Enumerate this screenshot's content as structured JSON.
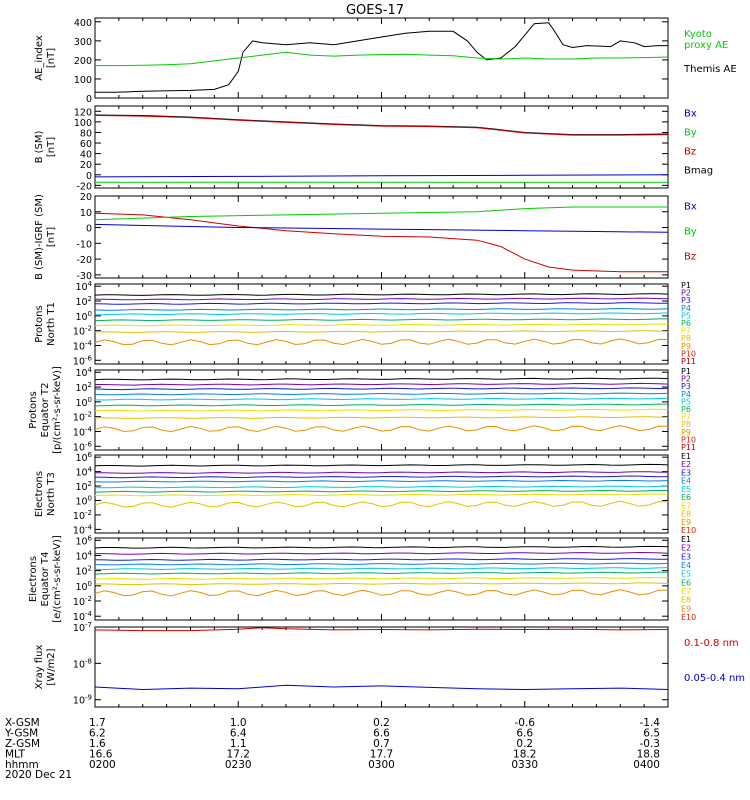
{
  "title": "GOES-17",
  "footer": {
    "rows": [
      {
        "label": "X-GSM",
        "values": [
          "1.7",
          "1.0",
          "0.2",
          "-0.6",
          "-1.4"
        ]
      },
      {
        "label": "Y-GSM",
        "values": [
          "6.2",
          "6.4",
          "6.6",
          "6.6",
          "6.5"
        ]
      },
      {
        "label": "Z-GSM",
        "values": [
          "1.6",
          "1.1",
          "0.7",
          "0.2",
          "-0.3"
        ]
      },
      {
        "label": "MLT",
        "values": [
          "16.6",
          "17.2",
          "17.7",
          "18.2",
          "18.8"
        ]
      },
      {
        "label": "hhmm",
        "values": [
          "0200",
          "0230",
          "0300",
          "0330",
          "0400"
        ]
      }
    ],
    "date": "2020 Dec 21"
  },
  "colors": {
    "black": "#000000",
    "green": "#00cc00",
    "red": "#cc0000",
    "blue": "#0000cc",
    "p1": "#000000",
    "p2": "#7a00a8",
    "p3": "#1a1acc",
    "p4": "#0a7fe0",
    "p5": "#00c8e0",
    "p6": "#00b060",
    "p7": "#e8e000",
    "p8": "#e8c000",
    "p9": "#e89000",
    "p10": "#e02000",
    "p11": "#aa0000"
  },
  "chart_data": [
    {
      "type": "line",
      "ylabel": [
        "AE_index",
        "[nT]"
      ],
      "yticks": [
        "400",
        "300",
        "200",
        "100",
        "0"
      ],
      "ylim": [
        0,
        420
      ],
      "xlim": [
        "0200",
        "0400"
      ],
      "legend": [
        {
          "text": [
            "Kyoto",
            "proxy AE"
          ],
          "color": "#00cc00"
        },
        {
          "text": [
            "Themis AE"
          ],
          "color": "#000000"
        }
      ],
      "series": [
        {
          "name": "Themis AE",
          "color": "#000000",
          "x": [
            0,
            4,
            10,
            20,
            25,
            28,
            30,
            31,
            33,
            35,
            40,
            45,
            50,
            55,
            60,
            65,
            70,
            75,
            78,
            80,
            82,
            85,
            88,
            92,
            95,
            96,
            98,
            100,
            103,
            108,
            110,
            113,
            115,
            118,
            120
          ],
          "values": [
            30,
            30,
            35,
            40,
            45,
            70,
            140,
            240,
            300,
            290,
            280,
            290,
            280,
            300,
            320,
            340,
            350,
            350,
            300,
            240,
            200,
            210,
            270,
            390,
            395,
            360,
            280,
            265,
            275,
            270,
            300,
            290,
            270,
            275,
            275
          ]
        },
        {
          "name": "Kyoto proxy AE",
          "color": "#00cc00",
          "x": [
            0,
            5,
            10,
            15,
            20,
            25,
            30,
            35,
            40,
            45,
            50,
            55,
            60,
            65,
            70,
            75,
            80,
            85,
            90,
            95,
            100,
            105,
            110,
            115,
            120
          ],
          "values": [
            170,
            170,
            172,
            175,
            180,
            195,
            210,
            225,
            240,
            225,
            220,
            225,
            228,
            230,
            225,
            222,
            210,
            205,
            210,
            205,
            205,
            210,
            210,
            212,
            215
          ]
        }
      ]
    },
    {
      "type": "line",
      "ylabel": [
        "B (SM)",
        "[nT]"
      ],
      "yticks": [
        "120",
        "100",
        "80",
        "60",
        "40",
        "20",
        "0",
        "-20"
      ],
      "ylim": [
        -25,
        130
      ],
      "legend": [
        {
          "text": [
            "Bx"
          ],
          "color": "#0000cc"
        },
        {
          "text": [
            "By"
          ],
          "color": "#00cc00"
        },
        {
          "text": [
            "Bz"
          ],
          "color": "#cc0000"
        },
        {
          "text": [
            "Bmag"
          ],
          "color": "#000000"
        }
      ],
      "series": [
        {
          "name": "Bmag",
          "color": "#000000",
          "x": [
            0,
            10,
            20,
            30,
            40,
            50,
            60,
            70,
            80,
            85,
            90,
            100,
            110,
            120
          ],
          "values": [
            113,
            112,
            109,
            104,
            100,
            96,
            93,
            92,
            90,
            85,
            80,
            76,
            76,
            77
          ]
        },
        {
          "name": "Bz",
          "color": "#cc0000",
          "x": [
            0,
            10,
            20,
            30,
            40,
            50,
            60,
            70,
            80,
            85,
            90,
            100,
            110,
            120
          ],
          "values": [
            112,
            111,
            108,
            103,
            99,
            95,
            92,
            91,
            89,
            84,
            79,
            75,
            75,
            76
          ]
        },
        {
          "name": "By",
          "color": "#00cc00",
          "x": [
            0,
            30,
            60,
            90,
            120
          ],
          "values": [
            -14,
            -14,
            -14,
            -14,
            -14
          ]
        },
        {
          "name": "Bx",
          "color": "#0000cc",
          "x": [
            0,
            30,
            60,
            90,
            120
          ],
          "values": [
            -4,
            -3,
            -2,
            -1,
            0
          ]
        }
      ]
    },
    {
      "type": "line",
      "ylabel": [
        "B (SM)-IGRF (SM)",
        "[nT]"
      ],
      "yticks": [
        "20",
        "10",
        "0",
        "-10",
        "-20",
        "-30"
      ],
      "ylim": [
        -32,
        20
      ],
      "legend": [
        {
          "text": [
            "Bx"
          ],
          "color": "#0000cc"
        },
        {
          "text": [
            "By"
          ],
          "color": "#00cc00"
        },
        {
          "text": [
            "Bz"
          ],
          "color": "#cc0000"
        }
      ],
      "series": [
        {
          "name": "Bz",
          "color": "#cc0000",
          "x": [
            0,
            10,
            20,
            30,
            40,
            50,
            60,
            70,
            80,
            85,
            90,
            95,
            100,
            110,
            120
          ],
          "values": [
            9,
            8,
            5,
            1,
            -2,
            -4,
            -5.5,
            -6,
            -8,
            -12,
            -20,
            -25,
            -27,
            -28,
            -28
          ]
        },
        {
          "name": "By",
          "color": "#00cc00",
          "x": [
            0,
            20,
            40,
            60,
            80,
            90,
            100,
            120
          ],
          "values": [
            5,
            7,
            8,
            9,
            10,
            12,
            13,
            13
          ]
        },
        {
          "name": "Bx",
          "color": "#0000cc",
          "x": [
            0,
            15,
            30,
            45,
            60,
            75,
            90,
            105,
            120
          ],
          "values": [
            2,
            1,
            0,
            -0.5,
            -1,
            -1.5,
            -2,
            -2.5,
            -3
          ]
        }
      ]
    },
    {
      "type": "line",
      "log": true,
      "ylabel": [
        "Protons",
        "North T1"
      ],
      "yticks": [
        "10^4",
        "10^2",
        "10^0",
        "10^-2",
        "10^-4",
        "10^-6"
      ],
      "ylim": [
        -6.5,
        4.3
      ],
      "legend_labels": [
        "P1",
        "P2",
        "P3",
        "P4",
        "P5",
        "P6",
        "P7",
        "P8",
        "P9",
        "P10",
        "P11"
      ],
      "levels_log10": [
        2.8,
        2.2,
        1.6,
        0.8,
        0.2,
        -0.6,
        -1.3,
        -2.2,
        -3.6
      ]
    },
    {
      "type": "line",
      "log": true,
      "ylabel": [
        "Protons",
        "Equator T2",
        "[p/(cm²-s-sr-keV)]"
      ],
      "yticks": [
        "10^4",
        "10^2",
        "10^0",
        "10^-2",
        "10^-4",
        "10^-6"
      ],
      "ylim": [
        -6.5,
        4.3
      ],
      "legend_labels": [
        "P1",
        "P2",
        "P3",
        "P4",
        "P5",
        "P6",
        "P7",
        "P8",
        "P9",
        "P10",
        "P11"
      ],
      "levels_log10": [
        3.0,
        2.3,
        1.7,
        1.0,
        0.3,
        -0.5,
        -1.2,
        -2.2,
        -3.7
      ]
    },
    {
      "type": "line",
      "log": true,
      "ylabel": [
        "Electrons",
        "North T3"
      ],
      "yticks": [
        "10^6",
        "10^4",
        "10^2",
        "10^0",
        "10^-2",
        "10^-4"
      ],
      "ylim": [
        -4.5,
        6.3
      ],
      "legend_labels": [
        "E1",
        "E2",
        "E3",
        "E4",
        "E5",
        "E6",
        "E7",
        "E8",
        "E9",
        "E10"
      ],
      "levels_log10": [
        4.8,
        3.8,
        3.2,
        2.6,
        1.8,
        1.2,
        0.7,
        -0.6
      ]
    },
    {
      "type": "line",
      "log": true,
      "ylabel": [
        "Electrons",
        "Equator T4",
        "[e/(cm²-s-sr-keV)]"
      ],
      "yticks": [
        "10^6",
        "10^4",
        "10^2",
        "10^0",
        "10^-2",
        "10^-4"
      ],
      "ylim": [
        -4.5,
        6.3
      ],
      "legend_labels": [
        "E1",
        "E2",
        "E3",
        "E4",
        "E5",
        "E6",
        "E7",
        "E8",
        "E9",
        "E10"
      ],
      "levels_log10": [
        5.0,
        4.2,
        3.4,
        2.8,
        2.2,
        1.6,
        0.9,
        0.2,
        -1.0
      ]
    },
    {
      "type": "line",
      "log": true,
      "ylabel": [
        "Xray flux",
        "[W/m2]"
      ],
      "yticks": [
        "10^-7",
        "10^-8",
        "10^-9"
      ],
      "ylim": [
        -9.2,
        -7
      ],
      "legend": [
        {
          "text": [
            "0.1-0.8 nm"
          ],
          "color": "#cc0000"
        },
        {
          "text": [
            "0.05-0.4 nm"
          ],
          "color": "#0000cc"
        }
      ],
      "series": [
        {
          "name": "0.1-0.8 nm",
          "color": "#cc0000",
          "x": [
            0,
            10,
            20,
            30,
            35,
            40,
            50,
            60,
            70,
            80,
            90,
            100,
            110,
            120
          ],
          "values": [
            -7.08,
            -7.1,
            -7.1,
            -7.06,
            -7.02,
            -7.05,
            -7.08,
            -7.07,
            -7.08,
            -7.06,
            -7.07,
            -7.06,
            -7.08,
            -7.07
          ]
        },
        {
          "name": "0.05-0.4 nm",
          "color": "#0000cc",
          "x": [
            0,
            10,
            20,
            30,
            40,
            50,
            60,
            70,
            80,
            90,
            100,
            110,
            120
          ],
          "values": [
            -8.65,
            -8.72,
            -8.68,
            -8.7,
            -8.6,
            -8.65,
            -8.62,
            -8.66,
            -8.7,
            -8.72,
            -8.7,
            -8.68,
            -8.72
          ]
        }
      ]
    }
  ]
}
